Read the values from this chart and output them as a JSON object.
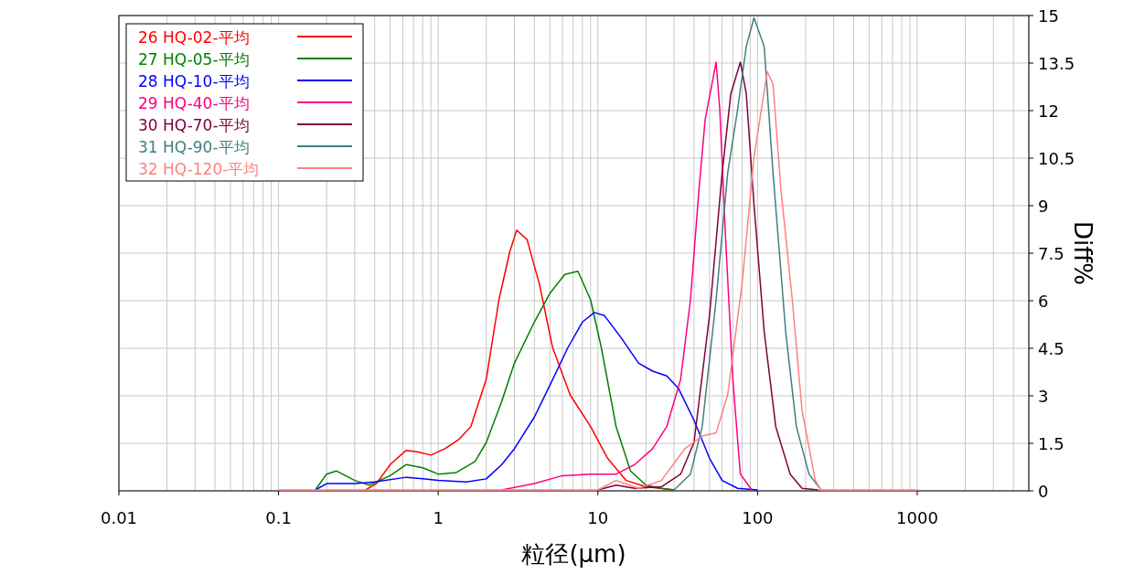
{
  "chart_data": {
    "type": "line",
    "xlabel": "粒径(μm)",
    "y2label": "Diff%",
    "log": "x",
    "grid": true,
    "legend": "top left",
    "marker": "none",
    "line_style": "solid",
    "xlim": [
      0.01,
      5000
    ],
    "xticks": [
      0.01,
      0.1,
      1,
      10,
      100,
      1000
    ],
    "y2lim": [
      0,
      15
    ],
    "y2ticks": [
      0,
      1.5,
      3,
      4.5,
      6,
      7.5,
      9,
      10.5,
      12,
      13.5,
      15
    ],
    "series": [
      {
        "name": "26 HQ-02-平均",
        "color": "#ff0000",
        "axis": "y2",
        "x": [
          0.35,
          0.41,
          0.5,
          0.63,
          0.75,
          0.9,
          1.1,
          1.35,
          1.6,
          2.0,
          2.4,
          2.8,
          3.1,
          3.6,
          4.3,
          5.2,
          6.7,
          9.0,
          11.5,
          15,
          20,
          30
        ],
        "values": [
          0,
          0.2,
          0.8,
          1.25,
          1.2,
          1.1,
          1.3,
          1.6,
          2.0,
          3.5,
          6.0,
          7.5,
          8.2,
          7.9,
          6.5,
          4.5,
          3.0,
          2.0,
          1.0,
          0.3,
          0.1,
          0
        ]
      },
      {
        "name": "27 HQ-05-平均",
        "color": "#008000",
        "axis": "y2",
        "x": [
          0.17,
          0.2,
          0.23,
          0.3,
          0.37,
          0.5,
          0.63,
          0.8,
          1.0,
          1.3,
          1.7,
          2.0,
          2.5,
          3.0,
          4.0,
          5.0,
          6.2,
          7.5,
          9.0,
          10.5,
          13,
          16,
          20,
          25,
          30
        ],
        "values": [
          0,
          0.5,
          0.6,
          0.3,
          0.15,
          0.45,
          0.8,
          0.7,
          0.5,
          0.55,
          0.9,
          1.5,
          2.8,
          4.0,
          5.3,
          6.2,
          6.8,
          6.9,
          6.0,
          4.5,
          2.0,
          0.6,
          0.15,
          0.05,
          0
        ]
      },
      {
        "name": "28 HQ-10-平均",
        "color": "#0000ff",
        "axis": "y2",
        "x": [
          0.17,
          0.2,
          0.3,
          0.4,
          0.63,
          0.8,
          1.0,
          1.5,
          2.0,
          2.5,
          3.0,
          4.0,
          5.0,
          6.5,
          8.0,
          9.5,
          11,
          14,
          18,
          22,
          27,
          32,
          40,
          50,
          60,
          75,
          100
        ],
        "values": [
          0,
          0.2,
          0.2,
          0.25,
          0.4,
          0.35,
          0.3,
          0.25,
          0.35,
          0.8,
          1.3,
          2.3,
          3.3,
          4.5,
          5.3,
          5.6,
          5.5,
          4.8,
          4.0,
          3.75,
          3.6,
          3.2,
          2.2,
          1.0,
          0.3,
          0.05,
          0
        ]
      },
      {
        "name": "29 HQ-40-平均",
        "color": "#ff0080",
        "axis": "y2",
        "x": [
          2.5,
          4,
          6,
          9,
          13,
          17,
          22,
          27,
          33,
          38,
          43,
          47,
          55,
          58,
          63,
          70,
          78,
          92
        ],
        "values": [
          0,
          0.2,
          0.45,
          0.5,
          0.5,
          0.8,
          1.3,
          2.0,
          3.5,
          6.0,
          9.5,
          11.7,
          13.5,
          12.0,
          8.0,
          3.5,
          0.5,
          0
        ]
      },
      {
        "name": "30 HQ-70-平均",
        "color": "#800040",
        "axis": "y2",
        "x": [
          10,
          13,
          17,
          25,
          33,
          40,
          50,
          60,
          68,
          78,
          85,
          95,
          110,
          130,
          160,
          190,
          240
        ],
        "values": [
          0,
          0.15,
          0.05,
          0.1,
          0.5,
          1.5,
          5.5,
          10.0,
          12.5,
          13.5,
          12.5,
          9.0,
          5.0,
          2.0,
          0.5,
          0.05,
          0
        ]
      },
      {
        "name": "31 HQ-90-平均",
        "color": "#408080",
        "axis": "y2",
        "x": [
          30,
          38,
          45,
          55,
          65,
          75,
          85,
          95,
          110,
          125,
          150,
          175,
          210,
          250
        ],
        "values": [
          0,
          0.5,
          2.0,
          6.0,
          10.0,
          12.0,
          14.0,
          14.9,
          14.0,
          10.0,
          5.0,
          2.0,
          0.5,
          0
        ]
      },
      {
        "name": "32 HQ-120-平均",
        "color": "#ff8080",
        "axis": "y2",
        "x": [
          0.1,
          10,
          13,
          18,
          25,
          35,
          45,
          55,
          65,
          80,
          95,
          115,
          125,
          140,
          165,
          190,
          230,
          250,
          1000
        ],
        "values": [
          0,
          0,
          0.3,
          0.05,
          0.3,
          1.3,
          1.7,
          1.8,
          3.0,
          6.5,
          10.5,
          13.2,
          12.8,
          9.5,
          6.0,
          2.5,
          0.3,
          0,
          0
        ]
      }
    ]
  }
}
